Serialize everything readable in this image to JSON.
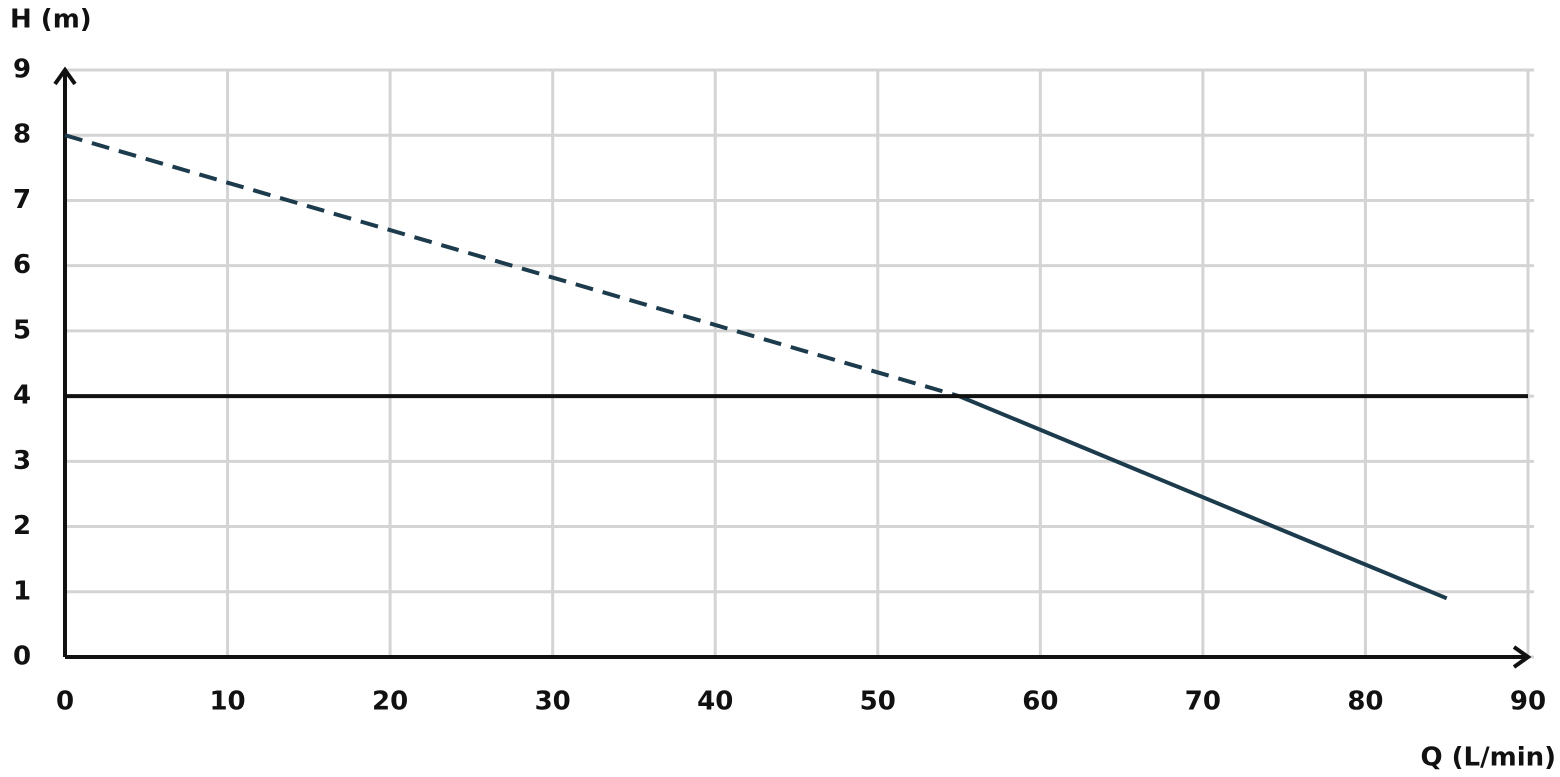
{
  "chart_data": {
    "type": "line",
    "y_label": "H (m)",
    "x_label": "Q (L/min)",
    "xlim": [
      0,
      90
    ],
    "xticks": [
      0,
      10,
      20,
      30,
      40,
      50,
      60,
      70,
      80,
      90
    ],
    "ylim": [
      0,
      9
    ],
    "yticks": [
      0,
      1,
      2,
      3,
      4,
      5,
      6,
      7,
      8,
      9
    ],
    "grid": true,
    "series": [
      {
        "x": [
          0,
          55
        ],
        "values": [
          8,
          4
        ],
        "color": "#1c3b4c",
        "dash": true
      },
      {
        "x": [
          55,
          85
        ],
        "values": [
          4,
          0.9
        ],
        "color": "#1c3b4c",
        "dash": false
      },
      {
        "x": [
          0,
          90
        ],
        "values": [
          4,
          4
        ],
        "color": "#111111",
        "dash": false
      }
    ]
  }
}
